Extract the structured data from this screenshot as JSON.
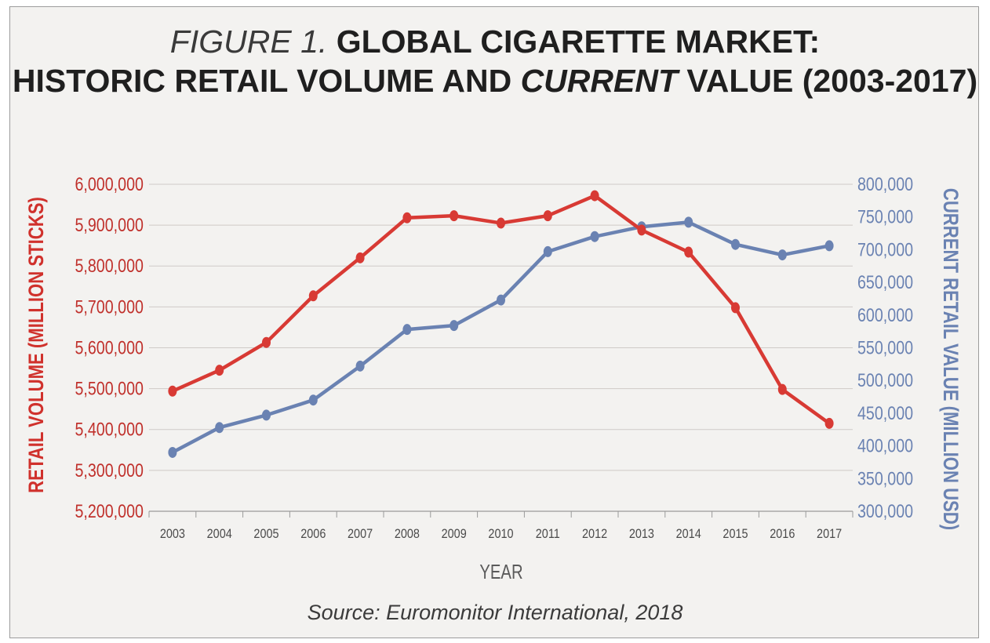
{
  "title": {
    "prefix": "FIGURE 1.",
    "line1": "GLOBAL CIGARETTE MARKET:",
    "line2_a": "HISTORIC RETAIL VOLUME AND",
    "line2_italic": "CURRENT",
    "line2_b": "VALUE (2003-2017)"
  },
  "source": "Source: Euromonitor International, 2018",
  "colors": {
    "volume": "#d83a34",
    "value": "#6a82b2",
    "grid": "#cfcac7",
    "tick": "#5a5a5a"
  },
  "chart_data": {
    "type": "line",
    "xlabel": "YEAR",
    "x": [
      "2003",
      "2004",
      "2005",
      "2006",
      "2007",
      "2008",
      "2009",
      "2010",
      "2011",
      "2012",
      "2013",
      "2014",
      "2015",
      "2016",
      "2017"
    ],
    "y_left": {
      "label": "RETAIL VOLUME (MILLION STICKS)",
      "range": [
        5200000,
        6000000
      ],
      "ticks": [
        "5,200,000",
        "5,300,000",
        "5,400,000",
        "5,500,000",
        "5,600,000",
        "5,700,000",
        "5,800,000",
        "5,900,000",
        "6,000,000"
      ]
    },
    "y_right": {
      "label": "CURRENT RETAIL VALUE (MILLION USD)",
      "range": [
        300000,
        800000
      ],
      "ticks": [
        "300,000",
        "350,000",
        "400,000",
        "450,000",
        "500,000",
        "550,000",
        "600,000",
        "650,000",
        "700,000",
        "750,000",
        "800,000"
      ]
    },
    "grid": true,
    "series": [
      {
        "axis": "left",
        "color": "#d83a34",
        "values": [
          5494000,
          5545000,
          5613000,
          5727000,
          5820000,
          5918000,
          5923000,
          5905000,
          5923000,
          5972000,
          5888000,
          5834000,
          5698000,
          5498000,
          5415000
        ]
      },
      {
        "axis": "right",
        "color": "#6a82b2",
        "values": [
          390000,
          428000,
          447000,
          470000,
          522000,
          578000,
          584000,
          623000,
          697000,
          720000,
          735000,
          742000,
          708000,
          692000,
          706000
        ]
      }
    ]
  }
}
